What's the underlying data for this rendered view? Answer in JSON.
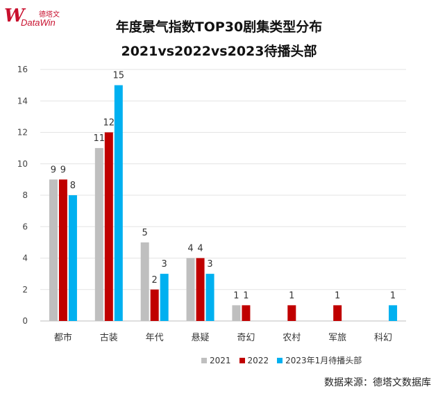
{
  "logo": {
    "mark": "W",
    "cn": "德塔文",
    "en": "DataWin"
  },
  "chart_data": {
    "type": "bar",
    "title": "年度景气指数TOP30剧集类型分布",
    "subtitle": "2021vs2022vs2023待播头部",
    "categories": [
      "都市",
      "古装",
      "年代",
      "悬疑",
      "奇幻",
      "农村",
      "军旅",
      "科幻"
    ],
    "series": [
      {
        "name": "2021",
        "color": "#bfbfbf",
        "values": [
          9,
          11,
          5,
          4,
          1,
          0,
          0,
          0
        ]
      },
      {
        "name": "2022",
        "color": "#c00000",
        "values": [
          9,
          12,
          2,
          4,
          1,
          1,
          1,
          0
        ]
      },
      {
        "name": "2023年1月待播头部",
        "color": "#00b0f0",
        "values": [
          8,
          15,
          3,
          3,
          0,
          0,
          0,
          1
        ]
      }
    ],
    "ylim": [
      0,
      16
    ],
    "yticks": [
      0,
      2,
      4,
      6,
      8,
      10,
      12,
      14,
      16
    ],
    "grid": true,
    "legend_position": "bottom-right",
    "source": "数据来源：德塔文数据库"
  }
}
